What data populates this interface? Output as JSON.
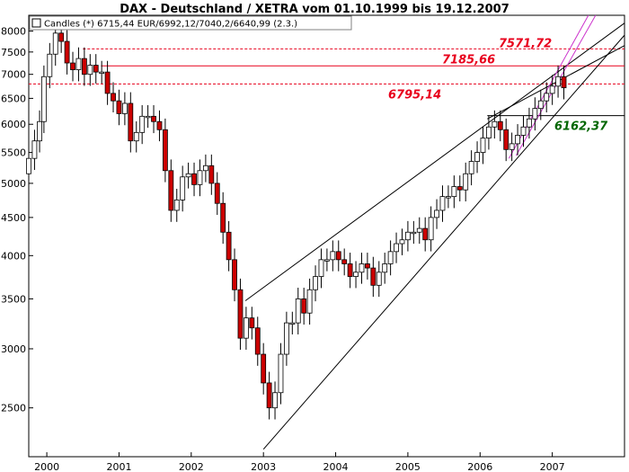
{
  "chart_data": {
    "type": "candlestick",
    "title": "DAX - Deutschland / XETRA vom 01.10.1999 bis 19.12.2007",
    "legend": {
      "label": "Candles (*) 6715,44 EUR/6992,12/7040,2/6640,99 (2.3.)",
      "placement": "top-left"
    },
    "y_scale": "log",
    "ylim": [
      2150,
      8400
    ],
    "y_ticks": [
      2500,
      3000,
      3500,
      4000,
      4500,
      5000,
      5500,
      6000,
      6500,
      7000,
      7500,
      8000
    ],
    "x_range": [
      1999.75,
      2008.0
    ],
    "x_ticks": [
      "2000",
      "2001",
      "2002",
      "2003",
      "2004",
      "2005",
      "2006",
      "2007"
    ],
    "grid": false,
    "colors": {
      "up_candle": "#ffffff",
      "down_candle": "#cc0000",
      "candle_outline": "#000000",
      "level_line": "#e8001c",
      "support_line": "#000000",
      "channel_line": "#cc33cc",
      "red_label": "#e8001c",
      "green_label": "#006600"
    },
    "horizontal_levels": [
      {
        "value": 7571.72,
        "label": "7571,72",
        "style": "dashed",
        "color": "#e8001c",
        "from_year": 2000.5
      },
      {
        "value": 7185.66,
        "label": "7185,66",
        "style": "solid",
        "color": "#e8001c",
        "from_year": 2000.75
      },
      {
        "value": 6795.14,
        "label": "6795,14",
        "style": "dashed",
        "color": "#e8001c",
        "from_year": 1999.75
      },
      {
        "value": 6162.37,
        "label": "6162,37",
        "style": "solid",
        "color": "#000000",
        "from_year": 2006.1
      }
    ],
    "trend_lines": [
      {
        "from": [
          2002.75,
          3480
        ],
        "to": [
          2008.0,
          8200
        ],
        "color": "#000000"
      },
      {
        "from": [
          2003.0,
          2200
        ],
        "to": [
          2008.0,
          7900
        ],
        "color": "#000000"
      },
      {
        "from": [
          2006.1,
          6100
        ],
        "to": [
          2008.0,
          7650
        ],
        "color": "#000000"
      },
      {
        "from": [
          2006.4,
          5400
        ],
        "to": [
          2007.5,
          8400
        ],
        "color": "#cc33cc"
      },
      {
        "from": [
          2006.5,
          5450
        ],
        "to": [
          2007.6,
          8400
        ],
        "color": "#cc33cc"
      }
    ],
    "series": [
      {
        "name": "Candles",
        "points": [
          [
            1999.75,
            5150,
            5400
          ],
          [
            1999.83,
            5400,
            5700
          ],
          [
            1999.9,
            5700,
            6050
          ],
          [
            1999.96,
            6050,
            6950
          ],
          [
            2000.04,
            6950,
            7450
          ],
          [
            2000.12,
            7450,
            7950
          ],
          [
            2000.2,
            7950,
            7750
          ],
          [
            2000.28,
            7750,
            7250
          ],
          [
            2000.36,
            7250,
            7100
          ],
          [
            2000.44,
            7100,
            7350
          ],
          [
            2000.52,
            7350,
            7000
          ],
          [
            2000.6,
            7000,
            7200
          ],
          [
            2000.68,
            7200,
            7050
          ],
          [
            2000.76,
            7050,
            7050
          ],
          [
            2000.84,
            7050,
            6600
          ],
          [
            2000.92,
            6600,
            6450
          ],
          [
            2001.0,
            6450,
            6200
          ],
          [
            2001.08,
            6200,
            6400
          ],
          [
            2001.16,
            6400,
            5700
          ],
          [
            2001.24,
            5700,
            5850
          ],
          [
            2001.32,
            5850,
            6150
          ],
          [
            2001.4,
            6150,
            6150
          ],
          [
            2001.48,
            6150,
            6050
          ],
          [
            2001.56,
            6050,
            5900
          ],
          [
            2001.64,
            5900,
            5200
          ],
          [
            2001.72,
            5200,
            4600
          ],
          [
            2001.8,
            4600,
            4750
          ],
          [
            2001.88,
            4750,
            5100
          ],
          [
            2001.96,
            5100,
            5150
          ],
          [
            2002.04,
            5150,
            4980
          ],
          [
            2002.12,
            4980,
            5200
          ],
          [
            2002.2,
            5200,
            5280
          ],
          [
            2002.28,
            5280,
            5000
          ],
          [
            2002.36,
            5000,
            4700
          ],
          [
            2002.44,
            4700,
            4300
          ],
          [
            2002.52,
            4300,
            3950
          ],
          [
            2002.6,
            3950,
            3600
          ],
          [
            2002.68,
            3600,
            3100
          ],
          [
            2002.76,
            3100,
            3300
          ],
          [
            2002.84,
            3300,
            3200
          ],
          [
            2002.92,
            3200,
            2950
          ],
          [
            2003.0,
            2950,
            2700
          ],
          [
            2003.08,
            2700,
            2500
          ],
          [
            2003.16,
            2500,
            2620
          ],
          [
            2003.24,
            2620,
            2950
          ],
          [
            2003.32,
            2950,
            3250
          ],
          [
            2003.4,
            3250,
            3250
          ],
          [
            2003.48,
            3250,
            3500
          ],
          [
            2003.56,
            3500,
            3350
          ],
          [
            2003.64,
            3350,
            3600
          ],
          [
            2003.72,
            3600,
            3750
          ],
          [
            2003.8,
            3750,
            3950
          ],
          [
            2003.88,
            3950,
            3950
          ],
          [
            2003.96,
            3950,
            4050
          ],
          [
            2004.04,
            4050,
            3950
          ],
          [
            2004.12,
            3950,
            3900
          ],
          [
            2004.2,
            3900,
            3750
          ],
          [
            2004.28,
            3750,
            3800
          ],
          [
            2004.36,
            3800,
            3900
          ],
          [
            2004.44,
            3900,
            3850
          ],
          [
            2004.52,
            3850,
            3650
          ],
          [
            2004.6,
            3650,
            3800
          ],
          [
            2004.68,
            3800,
            3900
          ],
          [
            2004.76,
            3900,
            4050
          ],
          [
            2004.84,
            4050,
            4150
          ],
          [
            2004.92,
            4150,
            4200
          ],
          [
            2005.0,
            4200,
            4300
          ],
          [
            2005.08,
            4300,
            4300
          ],
          [
            2005.16,
            4300,
            4350
          ],
          [
            2005.24,
            4350,
            4200
          ],
          [
            2005.32,
            4200,
            4500
          ],
          [
            2005.4,
            4500,
            4600
          ],
          [
            2005.48,
            4600,
            4800
          ],
          [
            2005.56,
            4800,
            4800
          ],
          [
            2005.64,
            4800,
            4950
          ],
          [
            2005.72,
            4950,
            4900
          ],
          [
            2005.8,
            4900,
            5150
          ],
          [
            2005.88,
            5150,
            5350
          ],
          [
            2005.96,
            5350,
            5500
          ],
          [
            2006.04,
            5500,
            5750
          ],
          [
            2006.12,
            5750,
            5950
          ],
          [
            2006.2,
            5950,
            6050
          ],
          [
            2006.28,
            6050,
            5900
          ],
          [
            2006.36,
            5900,
            5550
          ],
          [
            2006.44,
            5550,
            5650
          ],
          [
            2006.52,
            5650,
            5800
          ],
          [
            2006.6,
            5800,
            5950
          ],
          [
            2006.68,
            5950,
            6100
          ],
          [
            2006.76,
            6100,
            6300
          ],
          [
            2006.84,
            6300,
            6450
          ],
          [
            2006.92,
            6450,
            6600
          ],
          [
            2007.0,
            6600,
            6750
          ],
          [
            2007.08,
            6750,
            6950
          ],
          [
            2007.16,
            6950,
            6715
          ]
        ]
      }
    ],
    "point_format": "[year, open, close]"
  }
}
